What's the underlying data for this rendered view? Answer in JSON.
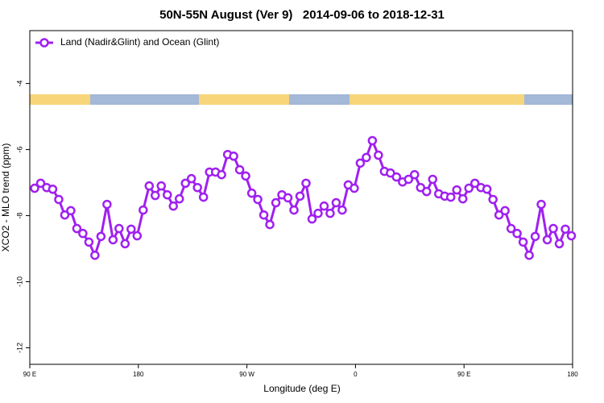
{
  "chart_data": {
    "type": "line",
    "title": "50N-55N August (Ver 9)   2014-09-06 to 2018-12-31",
    "x_label": "Longitude (deg E)",
    "y_label": "XCO2 - MLO trend (ppm)",
    "xlim": [
      90,
      540
    ],
    "ylim": [
      -12.5,
      -2.4
    ],
    "xticks": [
      {
        "value": 90,
        "label": "90 E"
      },
      180,
      {
        "value": 270,
        "label": "90 W"
      },
      {
        "value": 360,
        "label": "0"
      },
      {
        "value": 450,
        "label": "90 E"
      },
      {
        "value": 540,
        "label": "180"
      }
    ],
    "yticks": [
      -4,
      -6,
      -8,
      -10,
      -12
    ],
    "legend": "top-left",
    "x": [
      94,
      99,
      104,
      109,
      114,
      119,
      124,
      129,
      134,
      139,
      144,
      149,
      154,
      159,
      164,
      169,
      174,
      179,
      184,
      189,
      194,
      199,
      204,
      209,
      214,
      219,
      224,
      229,
      234,
      239,
      244,
      249,
      254,
      259,
      264,
      269,
      274,
      279,
      284,
      289,
      294,
      299,
      304,
      309,
      314,
      319,
      324,
      329,
      334,
      339,
      344,
      349,
      354,
      359,
      364,
      369,
      374,
      379,
      384,
      389,
      394,
      399,
      404,
      409,
      414,
      419,
      424,
      429,
      434,
      439,
      444,
      449,
      454,
      459,
      464,
      469,
      474,
      479,
      484,
      489,
      494,
      499,
      504,
      509,
      514,
      519,
      524,
      529,
      534,
      539
    ],
    "series": [
      {
        "name": "Land (Nadir&Glint) and Ocean (Glint)",
        "color": "#a020f0",
        "values": [
          -7.17,
          -7.02,
          -7.15,
          -7.2,
          -7.51,
          -7.98,
          -7.85,
          -8.39,
          -8.54,
          -8.8,
          -9.2,
          -8.63,
          -7.66,
          -8.73,
          -8.39,
          -8.85,
          -8.41,
          -8.61,
          -7.83,
          -7.1,
          -7.39,
          -7.1,
          -7.37,
          -7.71,
          -7.49,
          -7.02,
          -6.88,
          -7.15,
          -7.44,
          -6.68,
          -6.68,
          -6.76,
          -6.15,
          -6.2,
          -6.61,
          -6.8,
          -7.32,
          -7.51,
          -7.98,
          -8.27,
          -7.61,
          -7.37,
          -7.46,
          -7.83,
          -7.41,
          -7.02,
          -8.1,
          -7.93,
          -7.71,
          -7.93,
          -7.61,
          -7.83,
          -7.07,
          -7.17,
          -6.41,
          -6.24,
          -5.73,
          -6.17,
          -6.66,
          -6.71,
          -6.83,
          -6.98,
          -6.9,
          -6.76,
          -7.15,
          -7.27,
          -6.9,
          -7.34,
          -7.41,
          -7.44,
          -7.22,
          -7.49,
          -7.17,
          -7.02,
          -7.15,
          -7.2,
          -7.51,
          -7.98,
          -7.85,
          -8.39,
          -8.54,
          -8.8,
          -9.2,
          -8.63,
          -7.66,
          -8.73,
          -8.39,
          -8.85,
          -8.41,
          -8.61
        ]
      }
    ]
  }
}
